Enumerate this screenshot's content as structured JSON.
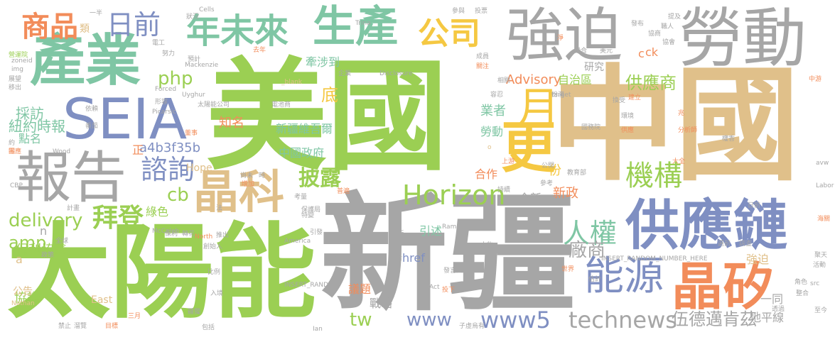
{
  "colors": {
    "green": "#9bcf53",
    "grey": "#a6a6a6",
    "tan": "#e0c08a",
    "blue": "#7f8fc2",
    "orange": "#f28c5a",
    "teal": "#7fc6a4",
    "yellow": "#f5c842"
  },
  "words": [
    {
      "text": "美國",
      "color": "green"
    },
    {
      "text": "中國",
      "color": "tan"
    },
    {
      "text": "新疆",
      "color": "grey"
    },
    {
      "text": "太陽能",
      "color": "green"
    },
    {
      "text": "強迫",
      "color": "grey"
    },
    {
      "text": "勞動",
      "color": "grey"
    },
    {
      "text": "產業",
      "color": "teal"
    },
    {
      "text": "SEIA",
      "color": "blue"
    },
    {
      "text": "報告",
      "color": "grey"
    },
    {
      "text": "供應鏈",
      "color": "blue"
    },
    {
      "text": "晶矽",
      "color": "orange"
    },
    {
      "text": "生產",
      "color": "teal"
    },
    {
      "text": "年未來",
      "color": "teal"
    },
    {
      "text": "公司",
      "color": "yellow"
    },
    {
      "text": "晶科",
      "color": "tan"
    },
    {
      "text": "能源",
      "color": "blue"
    },
    {
      "text": "更",
      "color": "yellow"
    },
    {
      "text": "月",
      "color": "yellow"
    },
    {
      "text": "Horizon",
      "color": "green"
    },
    {
      "text": "商品",
      "color": "orange"
    },
    {
      "text": "日前",
      "color": "blue"
    },
    {
      "text": "諮詢",
      "color": "blue"
    },
    {
      "text": "拜登",
      "color": "green"
    },
    {
      "text": "機構",
      "color": "green"
    },
    {
      "text": "人權",
      "color": "teal"
    },
    {
      "text": "technews",
      "color": "grey"
    },
    {
      "text": "www5",
      "color": "blue"
    },
    {
      "text": "供應商",
      "color": "green"
    },
    {
      "text": "披露",
      "color": "green"
    },
    {
      "text": "www",
      "color": "blue"
    },
    {
      "text": "delivery",
      "color": "green"
    },
    {
      "text": "伍德邁肯茲",
      "color": "grey"
    },
    {
      "text": "廠商",
      "color": "grey"
    },
    {
      "text": "php",
      "color": "green"
    },
    {
      "text": "cb",
      "color": "green"
    },
    {
      "text": "amp",
      "color": "green"
    },
    {
      "text": "tw",
      "color": "green"
    },
    {
      "text": "採訪",
      "color": "teal"
    },
    {
      "text": "紐約時報",
      "color": "teal"
    },
    {
      "text": "底",
      "color": "yellow"
    },
    {
      "text": "知名",
      "color": "orange"
    },
    {
      "text": "新疆維吾爾",
      "color": "teal"
    },
    {
      "text": "a4b3f35b",
      "color": "blue"
    },
    {
      "text": "中國政府",
      "color": "teal"
    },
    {
      "text": "業者",
      "color": "teal"
    },
    {
      "text": "勞動",
      "color": "teal"
    },
    {
      "text": "牽涉到",
      "color": "teal"
    },
    {
      "text": "Advisory",
      "color": "orange"
    },
    {
      "text": "自治區",
      "color": "green"
    },
    {
      "text": "研究",
      "color": "grey"
    },
    {
      "text": "ck",
      "color": "orange"
    },
    {
      "text": "保利協鑫",
      "color": "green"
    },
    {
      "text": "協議",
      "color": "green"
    },
    {
      "text": "href",
      "color": "blue"
    },
    {
      "text": "引述",
      "color": "teal"
    },
    {
      "text": "新政",
      "color": "orange"
    },
    {
      "text": "全新",
      "color": "grey"
    },
    {
      "text": "合作",
      "color": "orange"
    },
    {
      "text": "議題",
      "color": "orange"
    },
    {
      "text": "戰略",
      "color": "grey"
    },
    {
      "text": "一同",
      "color": "grey"
    },
    {
      "text": "強迫",
      "color": "tan"
    },
    {
      "text": "地平線",
      "color": "grey"
    },
    {
      "text": "份",
      "color": "yellow"
    },
    {
      "text": "綠色",
      "color": "green"
    },
    {
      "text": "點名",
      "color": "teal"
    },
    {
      "text": "公告",
      "color": "tan"
    },
    {
      "text": "East",
      "color": "tan"
    },
    {
      "text": "Hope",
      "color": "tan"
    },
    {
      "text": "正",
      "color": "orange"
    },
    {
      "text": "n",
      "color": "grey"
    },
    {
      "text": "a",
      "color": "tan"
    },
    {
      "text": "類",
      "color": "tan"
    },
    {
      "text": "電工",
      "color": "grey"
    },
    {
      "text": "努力",
      "color": "grey"
    },
    {
      "text": "預計",
      "color": "grey"
    },
    {
      "text": "去年",
      "color": "orange"
    },
    {
      "text": "太陽能公司",
      "color": "grey"
    },
    {
      "text": "電池商",
      "color": "grey"
    },
    {
      "text": "Forced",
      "color": "grey"
    },
    {
      "text": "Uyghur",
      "color": "grey"
    },
    {
      "text": "Picarsic",
      "color": "grey"
    },
    {
      "text": "Mackenzie",
      "color": "grey"
    },
    {
      "text": "Disclosure",
      "color": "grey"
    },
    {
      "text": "_blank",
      "color": "tan"
    },
    {
      "text": "企業",
      "color": "grey"
    },
    {
      "text": "Cells",
      "color": "grey"
    },
    {
      "text": "Trina",
      "color": "grey"
    },
    {
      "text": "參與",
      "color": "grey"
    },
    {
      "text": "投票",
      "color": "grey"
    },
    {
      "text": "發布",
      "color": "grey"
    },
    {
      "text": "協會",
      "color": "grey"
    },
    {
      "text": "美元",
      "color": "grey"
    },
    {
      "text": "聯合",
      "color": "grey"
    },
    {
      "text": "國務院",
      "color": "grey"
    },
    {
      "text": "供應",
      "color": "orange"
    },
    {
      "text": "環境",
      "color": "grey"
    },
    {
      "text": "權香",
      "color": "grey"
    },
    {
      "text": "分析師",
      "color": "orange"
    },
    {
      "text": "McCaleb",
      "color": "grey"
    },
    {
      "text": "America",
      "color": "grey"
    },
    {
      "text": "Rampant",
      "color": "grey"
    },
    {
      "text": "North",
      "color": "orange"
    },
    {
      "text": "Labor",
      "color": "grey"
    },
    {
      "text": "avw",
      "color": "grey"
    },
    {
      "text": "INSERT_RANDOM_NUMBER_HERE",
      "color": "grey"
    },
    {
      "text": "INSERT_RAND",
      "color": "grey"
    },
    {
      "text": "Nathan",
      "color": "tan"
    },
    {
      "text": "CBP",
      "color": "grey"
    },
    {
      "text": "Wood",
      "color": "grey"
    },
    {
      "text": "Ian",
      "color": "grey"
    },
    {
      "text": "Act",
      "color": "grey"
    },
    {
      "text": "src",
      "color": "grey"
    },
    {
      "text": "zoneid",
      "color": "grey"
    },
    {
      "text": "img",
      "color": "grey"
    },
    {
      "text": "target",
      "color": "grey"
    },
    {
      "text": "上游",
      "color": "orange"
    },
    {
      "text": "公開",
      "color": "grey"
    },
    {
      "text": "參考",
      "color": "grey"
    },
    {
      "text": "教育部",
      "color": "grey"
    },
    {
      "text": "人物",
      "color": "grey"
    },
    {
      "text": "上市",
      "color": "grey"
    },
    {
      "text": "追溯",
      "color": "grey"
    },
    {
      "text": "成本",
      "color": "grey"
    },
    {
      "text": "發言人",
      "color": "grey"
    },
    {
      "text": "子虛烏有",
      "color": "grey"
    },
    {
      "text": "包括",
      "color": "grey"
    },
    {
      "text": "三月",
      "color": "orange"
    },
    {
      "text": "目標",
      "color": "orange"
    },
    {
      "text": "禁止",
      "color": "grey"
    },
    {
      "text": "溜覽",
      "color": "grey"
    },
    {
      "text": "日前",
      "color": "grey"
    },
    {
      "text": "透過",
      "color": "grey"
    },
    {
      "text": "整合",
      "color": "grey"
    },
    {
      "text": "角色",
      "color": "grey"
    },
    {
      "text": "世界",
      "color": "orange"
    },
    {
      "text": "估計",
      "color": "grey"
    },
    {
      "text": "投下",
      "color": "orange"
    },
    {
      "text": "選前",
      "color": "grey"
    },
    {
      "text": "調查",
      "color": "grey"
    },
    {
      "text": "海關",
      "color": "orange"
    },
    {
      "text": "至今",
      "color": "grey"
    },
    {
      "text": "活動",
      "color": "grey"
    },
    {
      "text": "聚天",
      "color": "grey"
    },
    {
      "text": "全球",
      "color": "grey"
    },
    {
      "text": "一半",
      "color": "grey"
    },
    {
      "text": "狀況",
      "color": "grey"
    },
    {
      "text": "提及",
      "color": "grey"
    },
    {
      "text": "職人",
      "color": "grey"
    },
    {
      "text": "協商",
      "color": "grey"
    },
    {
      "text": "營運院",
      "color": "green"
    },
    {
      "text": "展望",
      "color": "grey"
    },
    {
      "text": "移出",
      "color": "grey"
    },
    {
      "text": "依賴",
      "color": "grey"
    },
    {
      "text": "番茄",
      "color": "grey"
    },
    {
      "text": "約",
      "color": "grey"
    },
    {
      "text": "回應",
      "color": "orange"
    },
    {
      "text": "董事",
      "color": "orange"
    },
    {
      "text": "形容",
      "color": "grey"
    },
    {
      "text": "容忍",
      "color": "grey"
    },
    {
      "text": "扮演",
      "color": "grey"
    },
    {
      "text": "建立",
      "color": "orange"
    },
    {
      "text": "換受",
      "color": "grey"
    },
    {
      "text": "相關",
      "color": "grey"
    },
    {
      "text": "關注",
      "color": "orange"
    },
    {
      "text": "成員",
      "color": "grey"
    },
    {
      "text": "淨",
      "color": "orange"
    },
    {
      "text": "兆",
      "color": "orange"
    },
    {
      "text": "中游",
      "color": "orange"
    },
    {
      "text": "大全",
      "color": "orange"
    },
    {
      "text": "尚未",
      "color": "grey"
    },
    {
      "text": "增加",
      "color": "orange"
    },
    {
      "text": "時",
      "color": "grey"
    },
    {
      "text": "法",
      "color": "grey"
    },
    {
      "text": "轉花",
      "color": "grey"
    },
    {
      "text": "創始人",
      "color": "grey"
    },
    {
      "text": "保利",
      "color": "grey"
    },
    {
      "text": "推出",
      "color": "grey"
    },
    {
      "text": "引發",
      "color": "grey"
    },
    {
      "text": "考量",
      "color": "grey"
    },
    {
      "text": "特變",
      "color": "grey"
    },
    {
      "text": "保護局",
      "color": "grey"
    },
    {
      "text": "比例",
      "color": "grey"
    },
    {
      "text": "入境",
      "color": "grey"
    },
    {
      "text": "疆獨",
      "color": "grey"
    },
    {
      "text": "普遍",
      "color": "orange"
    },
    {
      "text": "反",
      "color": "grey"
    },
    {
      "text": "持續",
      "color": "grey"
    },
    {
      "text": "計畫",
      "color": "grey"
    },
    {
      "text": "政策",
      "color": "grey"
    },
    {
      "text": "零",
      "color": "orange"
    },
    {
      "text": "o",
      "color": "tan"
    },
    {
      "text": "c",
      "color": "orange"
    }
  ]
}
